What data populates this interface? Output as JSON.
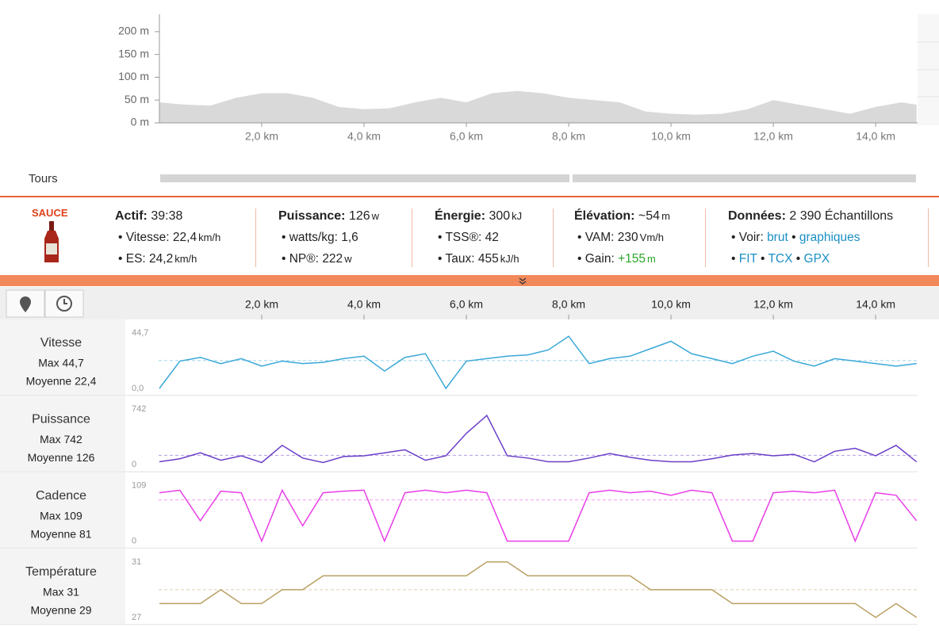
{
  "elevation": {
    "type": "area",
    "color": "#d9d9d9",
    "x": [
      0,
      0.5,
      1,
      1.5,
      2,
      2.5,
      3,
      3.5,
      4,
      4.5,
      5,
      5.5,
      6,
      6.5,
      7,
      7.5,
      8,
      8.5,
      9,
      9.5,
      10,
      10.5,
      11,
      11.5,
      12,
      12.5,
      13,
      13.5,
      14,
      14.5,
      14.8
    ],
    "values": [
      45,
      40,
      38,
      55,
      65,
      65,
      55,
      35,
      30,
      32,
      45,
      55,
      45,
      65,
      70,
      65,
      55,
      50,
      45,
      25,
      20,
      18,
      20,
      30,
      50,
      40,
      30,
      20,
      35,
      45,
      40
    ],
    "xlim": [
      0,
      14.82
    ],
    "ylim": [
      0,
      238
    ],
    "xticks": [
      {
        "value": 2,
        "label": "2,0 km"
      },
      {
        "value": 4,
        "label": "4,0 km"
      },
      {
        "value": 6,
        "label": "6,0 km"
      },
      {
        "value": 8,
        "label": "8,0 km"
      },
      {
        "value": 10,
        "label": "10,0 km"
      },
      {
        "value": 12,
        "label": "12,0 km"
      },
      {
        "value": 14,
        "label": "14,0 km"
      }
    ],
    "yticks": [
      {
        "value": 0,
        "label": "0 m"
      },
      {
        "value": 50,
        "label": "50 m"
      },
      {
        "value": 100,
        "label": "100 m"
      },
      {
        "value": 150,
        "label": "150 m"
      },
      {
        "value": 200,
        "label": "200 m"
      }
    ]
  },
  "laps": {
    "label": "Tours"
  },
  "summary": {
    "logo": "SAUCE",
    "groups": [
      {
        "title": "Actif:",
        "value": "39:38",
        "items": [
          {
            "label": "Vitesse:",
            "value": "22,4",
            "unit": "km/h"
          },
          {
            "label": "ES:",
            "value": "24,2",
            "unit": "km/h"
          }
        ]
      },
      {
        "title": "Puissance:",
        "value": "126",
        "unit": "w",
        "items": [
          {
            "label": "watts/kg:",
            "value": "1,6"
          },
          {
            "label": "NP®:",
            "value": "222",
            "unit": "w"
          }
        ]
      },
      {
        "title": "Énergie:",
        "value": "300",
        "unit": "kJ",
        "items": [
          {
            "label": "TSS®:",
            "value": "42"
          },
          {
            "label": "Taux:",
            "value": "455",
            "unit": "kJ/h"
          }
        ]
      },
      {
        "title": "Élévation:",
        "value": "~54",
        "unit": "m",
        "items": [
          {
            "label": "VAM:",
            "value": "230",
            "unit": "Vm/h"
          },
          {
            "label": "Gain:",
            "value": "+155",
            "unit": "m",
            "positive": true
          }
        ]
      },
      {
        "title": "Données:",
        "value": "2 390 Échantillons",
        "items": [
          {
            "label": "Voir:",
            "links": [
              "brut",
              "graphiques"
            ]
          },
          {
            "links": [
              "FIT",
              "TCX",
              "GPX"
            ]
          }
        ]
      }
    ]
  },
  "traces": {
    "type": "line",
    "xlim": [
      0,
      14.82
    ],
    "x": [
      0,
      0.4,
      0.8,
      1.2,
      1.6,
      2,
      2.4,
      2.8,
      3.2,
      3.6,
      4,
      4.4,
      4.8,
      5.2,
      5.6,
      6,
      6.4,
      6.8,
      7.2,
      7.6,
      8,
      8.4,
      8.8,
      9.2,
      9.6,
      10,
      10.4,
      10.8,
      11.2,
      11.6,
      12,
      12.4,
      12.8,
      13.2,
      13.6,
      14,
      14.4,
      14.8
    ],
    "series": [
      {
        "name": "Vitesse",
        "max_text": "Max 44,7",
        "avg_text": "Moyenne 22,4",
        "average": 22.4,
        "color": "#3aa8d8",
        "ylim": [
          0,
          44.7
        ],
        "yticks": [
          {
            "value": 0,
            "label": "0,0"
          },
          {
            "value": 44.7,
            "label": "44,7"
          }
        ],
        "values": [
          0,
          22,
          25,
          20,
          24,
          18,
          22,
          20,
          21,
          24,
          26,
          14,
          25,
          28,
          0,
          22,
          24,
          26,
          27,
          31,
          42,
          20,
          24,
          26,
          32,
          38,
          28,
          24,
          20,
          26,
          30,
          22,
          18,
          24,
          22,
          20,
          18,
          20
        ]
      },
      {
        "name": "Puissance",
        "max_text": "Max 742",
        "avg_text": "Moyenne 126",
        "average": 126,
        "color": "#6a3fc8",
        "ylim": [
          0,
          742
        ],
        "yticks": [
          0,
          742
        ],
        "values": [
          40,
          80,
          160,
          60,
          120,
          30,
          260,
          90,
          30,
          110,
          120,
          160,
          200,
          60,
          120,
          420,
          660,
          120,
          90,
          40,
          40,
          90,
          150,
          100,
          60,
          40,
          40,
          80,
          130,
          150,
          120,
          140,
          40,
          180,
          220,
          120,
          260,
          40
        ]
      },
      {
        "name": "Cadence",
        "max_text": "Max 109",
        "avg_text": "Moyenne 81",
        "average": 81,
        "color": "#e83ee8",
        "ylim": [
          0,
          109
        ],
        "yticks": [
          0,
          109
        ],
        "values": [
          95,
          100,
          40,
          98,
          95,
          0,
          100,
          30,
          95,
          98,
          100,
          0,
          95,
          100,
          95,
          100,
          95,
          0,
          0,
          0,
          0,
          95,
          100,
          95,
          98,
          90,
          100,
          95,
          0,
          0,
          95,
          98,
          95,
          100,
          0,
          95,
          90,
          40
        ]
      },
      {
        "name": "Température",
        "max_text": "Max 31",
        "avg_text": "Moyenne 29",
        "average": 29,
        "color": "#b9a062",
        "ylim": [
          27,
          31
        ],
        "yticks": [
          27,
          31
        ],
        "values": [
          28,
          28,
          28,
          29,
          28,
          28,
          29,
          29,
          30,
          30,
          30,
          30,
          30,
          30,
          30,
          30,
          31,
          31,
          30,
          30,
          30,
          30,
          30,
          30,
          29,
          29,
          29,
          29,
          28,
          28,
          28,
          28,
          28,
          28,
          28,
          27,
          28,
          27
        ]
      }
    ]
  }
}
